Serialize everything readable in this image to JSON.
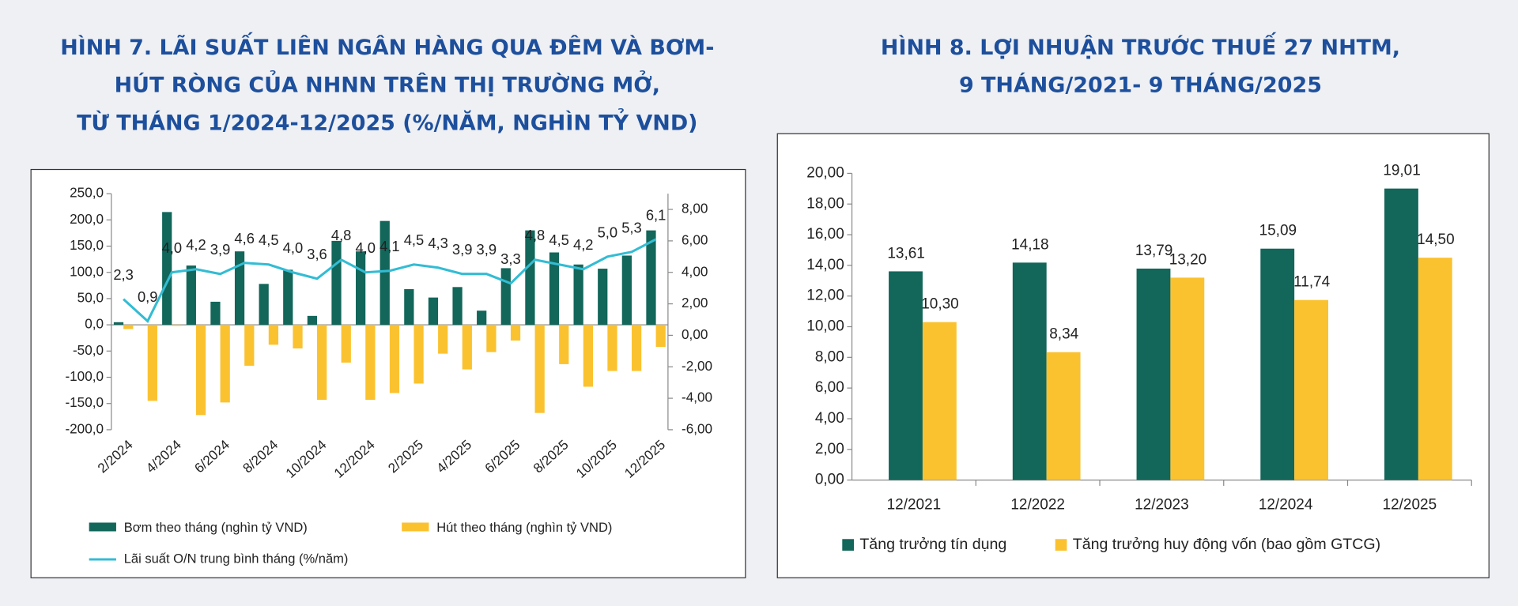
{
  "chart_data": [
    {
      "type": "combo",
      "title": [
        "HÌNH 7. LÃI SUẤT LIÊN NGÂN HÀNG QUA ĐÊM VÀ BƠM-",
        "HÚT RÒNG CỦA NHNN TRÊN THỊ TRƯỜNG MỞ,",
        "TỪ THÁNG 1/2024-12/2025 (%/NĂM, NGHÌN TỶ VND)"
      ],
      "categories": [
        "2/2024",
        null,
        "4/2024",
        null,
        "6/2024",
        null,
        "8/2024",
        null,
        "10/2024",
        null,
        "12/2024",
        null,
        "2/2025",
        null,
        "4/2025",
        null,
        "6/2025",
        null,
        "8/2025",
        null,
        "10/2025",
        null,
        "12/2025"
      ],
      "series": [
        {
          "name": "Bơm theo tháng (nghìn tỷ VND)",
          "color": "#12665a",
          "type": "bar",
          "values": [
            5,
            0,
            215,
            113,
            44,
            140,
            78,
            105,
            17,
            160,
            140,
            198,
            68,
            52,
            72,
            27,
            108,
            180,
            138,
            115,
            107,
            132,
            180
          ]
        },
        {
          "name": "Hút theo tháng (nghìn tỷ VND)",
          "color": "#fbc230",
          "type": "bar",
          "values": [
            -8,
            -145,
            -2,
            -172,
            -148,
            -78,
            -38,
            -45,
            -143,
            -72,
            -143,
            -130,
            -112,
            -55,
            -85,
            -52,
            -30,
            -168,
            -75,
            -118,
            -88,
            -88,
            -42
          ]
        },
        {
          "name": "Lãi suất O/N trung bình tháng (%/năm)",
          "color": "#33bcd3",
          "type": "line",
          "axis": "y2",
          "values": [
            2.3,
            0.9,
            4.0,
            4.2,
            3.9,
            4.6,
            4.5,
            4.0,
            3.6,
            4.8,
            4.0,
            4.1,
            4.5,
            4.3,
            3.9,
            3.9,
            3.3,
            4.8,
            4.5,
            4.2,
            5.0,
            5.3,
            6.1
          ],
          "value_labels": [
            "2,3",
            "0,9",
            "4,0",
            "4,2",
            "3,9",
            "4,6",
            "4,5",
            "4,0",
            "3,6",
            "4,8",
            "4,0",
            "4,1",
            "4,5",
            "4,3",
            "3,9",
            "3,9",
            "3,3",
            "4,8",
            "4,5",
            "4,2",
            "5,0",
            "5,3",
            "6,1"
          ]
        }
      ],
      "ylim": [
        -200,
        250
      ],
      "yticks": [
        {
          "value": -200,
          "label": "-200,0"
        },
        {
          "value": -150,
          "label": "-150,0"
        },
        {
          "value": -100,
          "label": "-100,0"
        },
        {
          "value": -50,
          "label": "-50,0"
        },
        {
          "value": 0,
          "label": "0,0"
        },
        {
          "value": 50,
          "label": "50,0"
        },
        {
          "value": 100,
          "label": "100,0"
        },
        {
          "value": 150,
          "label": "150,0"
        },
        {
          "value": 200,
          "label": "200,0"
        },
        {
          "value": 250,
          "label": "250,0"
        }
      ],
      "y2lim": [
        -6,
        9
      ],
      "y2ticks": [
        {
          "value": -6,
          "label": "-6,00"
        },
        {
          "value": -4,
          "label": "-4,00"
        },
        {
          "value": -2,
          "label": "-2,00"
        },
        {
          "value": 0,
          "label": "0,00"
        },
        {
          "value": 2,
          "label": "2,00"
        },
        {
          "value": 4,
          "label": "4,00"
        },
        {
          "value": 6,
          "label": "6,00"
        },
        {
          "value": 8,
          "label": "8,00"
        }
      ]
    },
    {
      "type": "bar",
      "title": [
        "HÌNH 8. LỢI NHUẬN TRƯỚC THUẾ 27 NHTM,",
        "9 THÁNG/2021- 9 THÁNG/2025"
      ],
      "categories": [
        "12/2021",
        "12/2022",
        "12/2023",
        "12/2024",
        "12/2025"
      ],
      "series": [
        {
          "name": "Tăng trưởng tín dụng",
          "color": "#12665a",
          "values": [
            13.61,
            14.18,
            13.79,
            15.09,
            19.01
          ],
          "value_labels": [
            "13,61",
            "14,18",
            "13,79",
            "15,09",
            "19,01"
          ]
        },
        {
          "name": "Tăng trưởng huy động vốn (bao gồm GTCG)",
          "color": "#fbc230",
          "values": [
            10.3,
            8.34,
            13.2,
            11.74,
            14.5
          ],
          "value_labels": [
            "10,30",
            "8,34",
            "13,20",
            "11,74",
            "14,50"
          ]
        }
      ],
      "ylim": [
        0,
        20
      ],
      "yticks": [
        {
          "value": 0,
          "label": "0,00"
        },
        {
          "value": 2,
          "label": "2,00"
        },
        {
          "value": 4,
          "label": "4,00"
        },
        {
          "value": 6,
          "label": "6,00"
        },
        {
          "value": 8,
          "label": "8,00"
        },
        {
          "value": 10,
          "label": "10,00"
        },
        {
          "value": 12,
          "label": "12,00"
        },
        {
          "value": 14,
          "label": "14,00"
        },
        {
          "value": 16,
          "label": "16,00"
        },
        {
          "value": 18,
          "label": "18,00"
        },
        {
          "value": 20,
          "label": "20,00"
        }
      ]
    }
  ]
}
